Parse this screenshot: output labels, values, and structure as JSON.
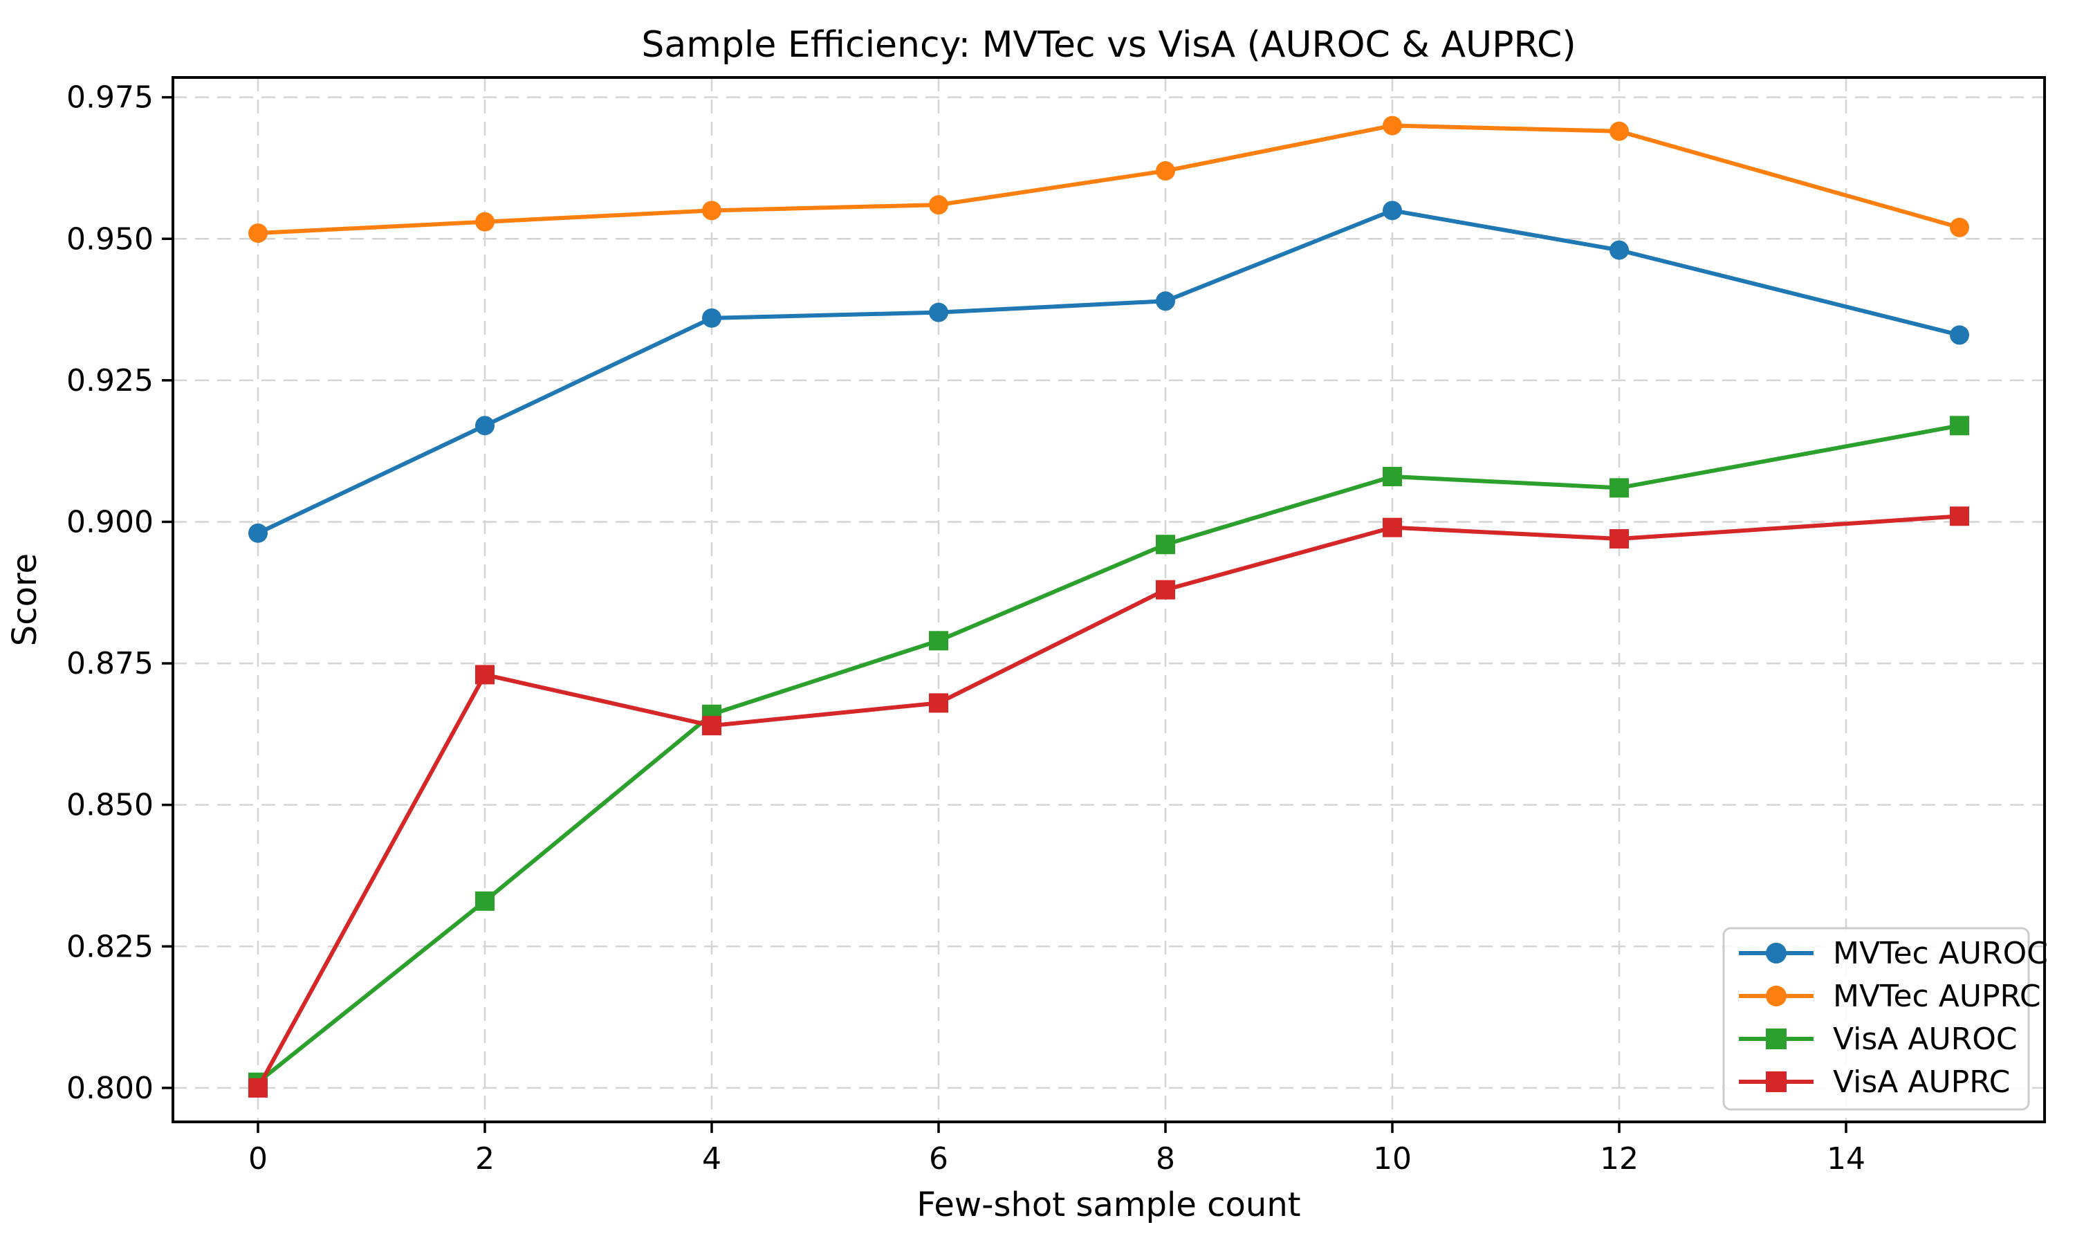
{
  "chart_data": {
    "type": "line",
    "title": "Sample Efficiency: MVTec vs VisA (AUROC & AUPRC)",
    "xlabel": "Few-shot sample count",
    "ylabel": "Score",
    "x": [
      0,
      2,
      4,
      6,
      8,
      10,
      12,
      15
    ],
    "series": [
      {
        "name": "MVTec AUROC",
        "marker": "circle",
        "color": "#1f77b4",
        "values": [
          0.898,
          0.917,
          0.936,
          0.937,
          0.939,
          0.955,
          0.948,
          0.933
        ]
      },
      {
        "name": "MVTec AUPRC",
        "marker": "circle",
        "color": "#ff7f0e",
        "values": [
          0.951,
          0.953,
          0.955,
          0.956,
          0.962,
          0.97,
          0.969,
          0.952
        ]
      },
      {
        "name": "VisA AUROC",
        "marker": "square",
        "color": "#2ca02c",
        "values": [
          0.801,
          0.833,
          0.866,
          0.879,
          0.896,
          0.908,
          0.906,
          0.917
        ]
      },
      {
        "name": "VisA AUPRC",
        "marker": "square",
        "color": "#d62728",
        "values": [
          0.8,
          0.873,
          0.864,
          0.868,
          0.888,
          0.899,
          0.897,
          0.901
        ]
      }
    ],
    "xticks": [
      0,
      2,
      4,
      6,
      8,
      10,
      12,
      14
    ],
    "yticks": [
      0.8,
      0.825,
      0.85,
      0.875,
      0.9,
      0.925,
      0.95,
      0.975
    ],
    "ytick_labels": [
      "0.800",
      "0.825",
      "0.850",
      "0.875",
      "0.900",
      "0.925",
      "0.950",
      "0.975"
    ],
    "xlim": [
      -0.75,
      15.75
    ],
    "ylim": [
      0.794,
      0.9785
    ],
    "grid": true,
    "grid_color": "#d4d4d4",
    "legend_position": "lower right",
    "background_color": "#ffffff",
    "spine_color": "#000000"
  }
}
